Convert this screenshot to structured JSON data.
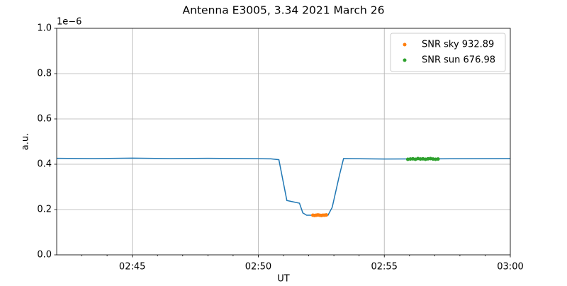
{
  "chart_data": {
    "type": "line",
    "title": "Antenna E3005, 3.34 2021 March 26",
    "xlabel": "UT",
    "ylabel": "a.u.",
    "y_offset_label": "1e−6",
    "xlim": [
      "02:42",
      "03:00"
    ],
    "xticks": [
      "02:45",
      "02:50",
      "02:55",
      "03:00"
    ],
    "xminorticks": [
      "02:43",
      "02:44",
      "02:46",
      "02:47",
      "02:48",
      "02:49",
      "02:51",
      "02:52",
      "02:53",
      "02:54",
      "02:56",
      "02:57",
      "02:58",
      "02:59"
    ],
    "ylim": [
      0,
      1.0
    ],
    "yticks": [
      {
        "value": 0,
        "label": "0.0"
      },
      {
        "value": 0.2,
        "label": "0.2"
      },
      {
        "value": 0.4,
        "label": "0.4"
      },
      {
        "value": 0.6,
        "label": "0.6"
      },
      {
        "value": 0.8,
        "label": "0.8"
      },
      {
        "value": 1.0,
        "label": "1.0"
      }
    ],
    "grid": true,
    "legend": "upper right",
    "series": [
      {
        "type": "line",
        "color": "#1f77b4",
        "x": [
          "02:42:00",
          "02:43:30",
          "02:45:00",
          "02:46:30",
          "02:48:00",
          "02:49:30",
          "02:50:30",
          "02:50:49",
          "02:51:08",
          "02:51:38",
          "02:51:46",
          "02:51:55",
          "02:52:46",
          "02:52:56",
          "02:53:13",
          "02:53:23",
          "02:55:00",
          "02:57:00",
          "03:00:00"
        ],
        "values": [
          0.426,
          0.425,
          0.427,
          0.425,
          0.426,
          0.425,
          0.424,
          0.42,
          0.24,
          0.228,
          0.185,
          0.175,
          0.175,
          0.21,
          0.35,
          0.425,
          0.423,
          0.424,
          0.425
        ]
      },
      {
        "type": "scatter",
        "name": "SNR sky 932.89",
        "color": "#ff7f0e",
        "x": [
          "02:52:10",
          "02:52:14",
          "02:52:18",
          "02:52:22",
          "02:52:26",
          "02:52:30",
          "02:52:34",
          "02:52:38",
          "02:52:42"
        ],
        "values": [
          0.175,
          0.174,
          0.175,
          0.176,
          0.175,
          0.174,
          0.175,
          0.175,
          0.176
        ]
      },
      {
        "type": "scatter",
        "name": "SNR sun 676.98",
        "color": "#2ca02c",
        "x": [
          "02:55:56",
          "02:56:02",
          "02:56:08",
          "02:56:14",
          "02:56:20",
          "02:56:26",
          "02:56:32",
          "02:56:38",
          "02:56:44",
          "02:56:50",
          "02:56:56",
          "02:57:02",
          "02:57:08"
        ],
        "values": [
          0.422,
          0.423,
          0.424,
          0.422,
          0.425,
          0.423,
          0.424,
          0.422,
          0.424,
          0.425,
          0.423,
          0.422,
          0.423
        ]
      }
    ]
  }
}
